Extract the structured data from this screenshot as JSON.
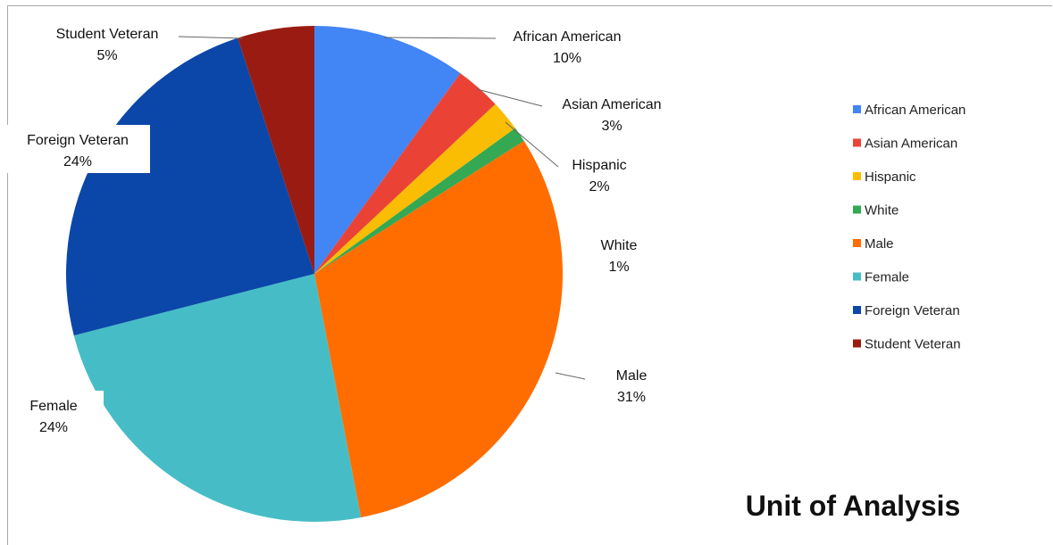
{
  "chart_data": {
    "type": "pie",
    "title": "Unit of Analysis",
    "legend_position": "right",
    "slices": [
      {
        "label": "African American",
        "value": 10,
        "value_label": "10%",
        "color": "#4285f4"
      },
      {
        "label": "Asian American",
        "value": 3,
        "value_label": "3%",
        "color": "#ea4335"
      },
      {
        "label": "Hispanic",
        "value": 2,
        "value_label": "2%",
        "color": "#fbbc04"
      },
      {
        "label": "White",
        "value": 1,
        "value_label": "1%",
        "color": "#34a853"
      },
      {
        "label": "Male",
        "value": 31,
        "value_label": "31%",
        "color": "#ff6d01"
      },
      {
        "label": "Female",
        "value": 24,
        "value_label": "24%",
        "color": "#46bdc6"
      },
      {
        "label": "Foreign Veteran",
        "value": 24,
        "value_label": "24%",
        "color": "#0b47a8"
      },
      {
        "label": "Student Veteran",
        "value": 5,
        "value_label": "5%",
        "color": "#9a1b12"
      }
    ]
  }
}
